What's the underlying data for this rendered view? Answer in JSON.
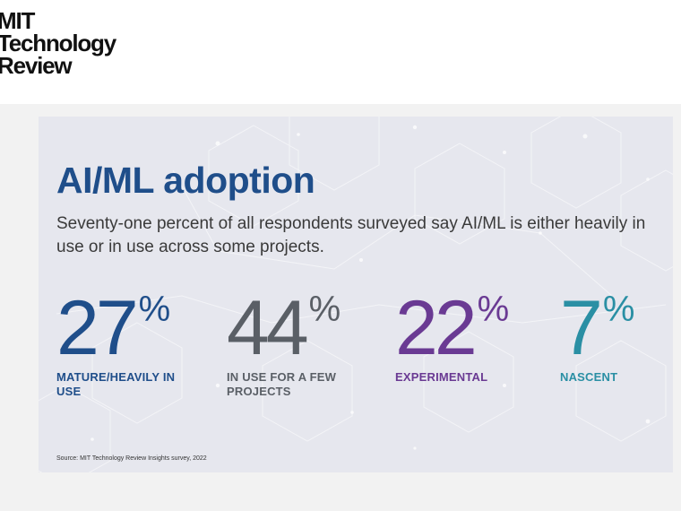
{
  "logo": {
    "lines": [
      "MIT",
      "Technology",
      "Review"
    ]
  },
  "card": {
    "title": "AI/ML adoption",
    "subtitle": "Seventy-one percent of all respondents surveyed say AI/ML is either heavily in use or in use across some projects.",
    "stats": [
      {
        "value": "27",
        "unit": "%",
        "label": "MATURE/HEAVILY IN USE",
        "color": "#1f4e8a"
      },
      {
        "value": "44",
        "unit": "%",
        "label": "IN USE FOR A FEW PROJECTS",
        "color": "#5a5f66"
      },
      {
        "value": "22",
        "unit": "%",
        "label": "EXPERIMENTAL",
        "color": "#6a3a93"
      },
      {
        "value": "7",
        "unit": "%",
        "label": "NASCENT",
        "color": "#2a8fa4"
      }
    ],
    "source": "Source: MIT Technology Review Insights survey, 2022"
  },
  "colors": {
    "card_bg": "#e6e7ee",
    "page_bg": "#f2f2f2",
    "title": "#1f4e8a"
  }
}
